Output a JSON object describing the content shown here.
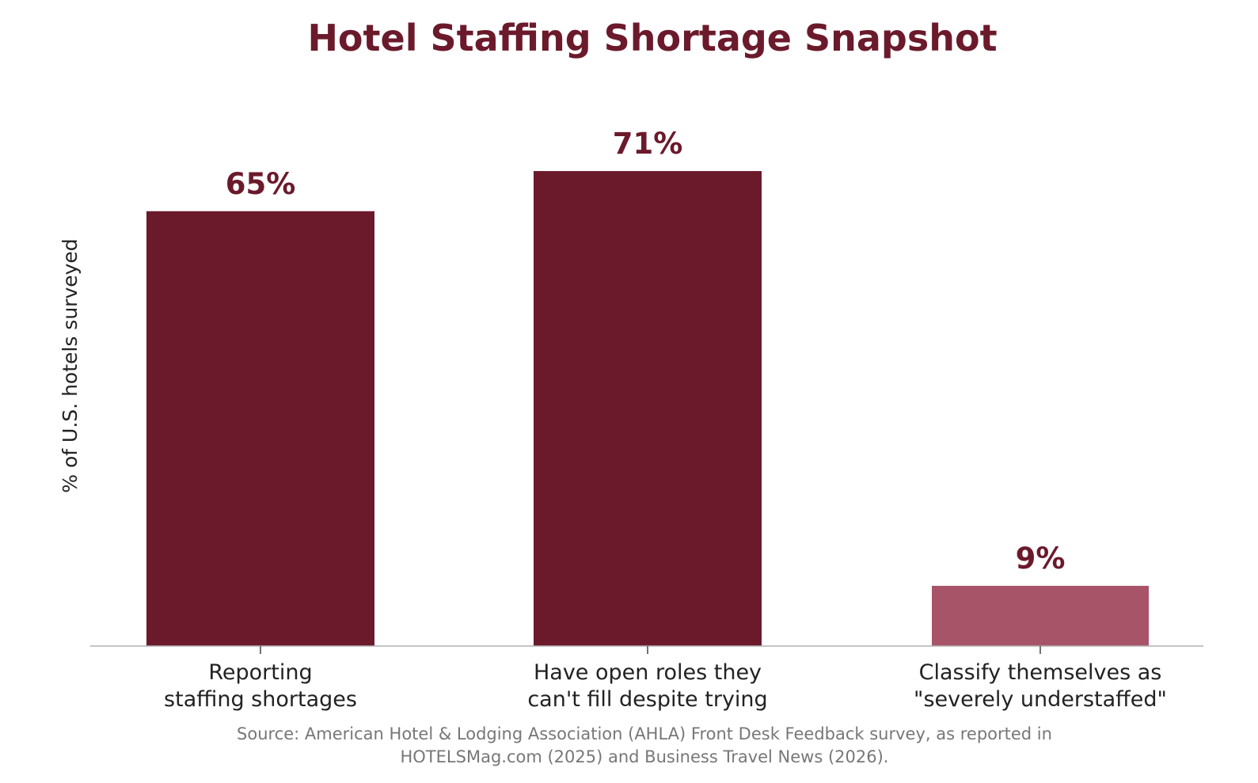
{
  "chart_data": {
    "type": "bar",
    "title": "Hotel Staffing Shortage Snapshot",
    "ylabel": "% of U.S. hotels surveyed",
    "xlabel": "",
    "ylim": [
      0,
      80
    ],
    "grid": false,
    "legend": "none",
    "categories": [
      [
        "Reporting",
        "staffing shortages"
      ],
      [
        "Have open roles they",
        "can't fill despite trying"
      ],
      [
        "Classify themselves as",
        "\"severely understaffed\""
      ]
    ],
    "values": [
      65,
      71,
      9
    ],
    "value_labels": [
      "65%",
      "71%",
      "9%"
    ],
    "bar_colors": [
      "#6b1a2b",
      "#6b1a2b",
      "#a85468"
    ],
    "source": [
      "Source: American Hotel & Lodging Association (AHLA) Front Desk Feedback survey, as reported in",
      "HOTELSMag.com (2025) and Business Travel News (2026)."
    ]
  },
  "colors": {
    "title": "#6b1a2b",
    "value_label": "#6b1a2b",
    "axis": "#b0b0b0"
  }
}
